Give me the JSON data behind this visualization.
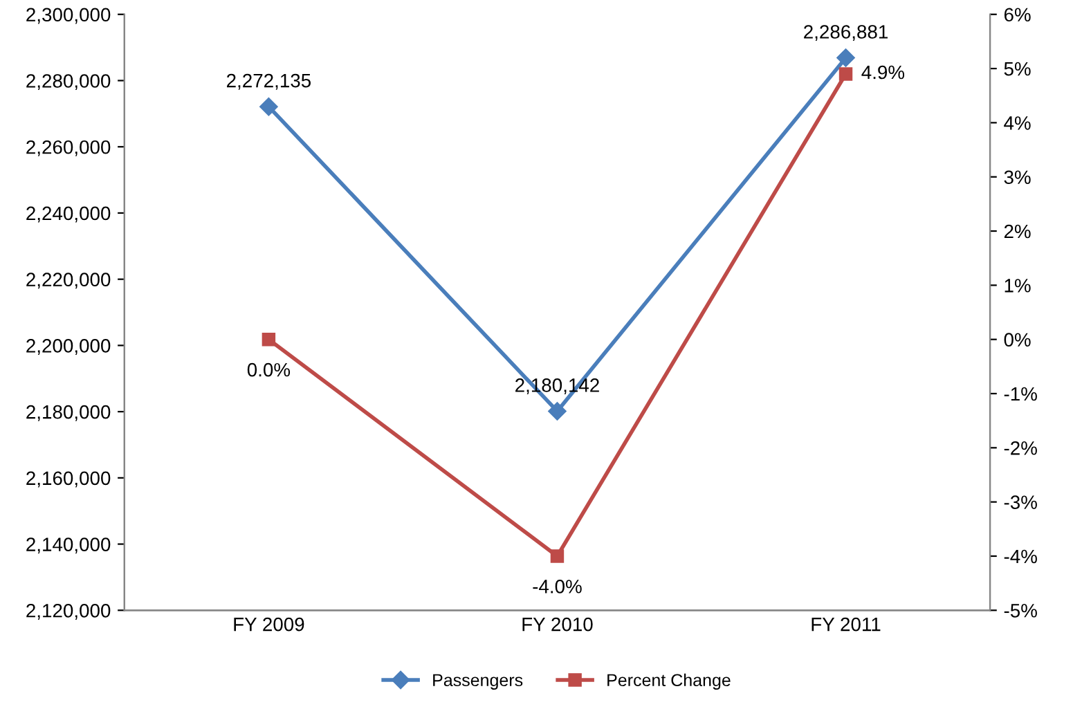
{
  "chart_data": {
    "type": "line",
    "categories": [
      "FY 2009",
      "FY 2010",
      "FY 2011"
    ],
    "series": [
      {
        "name": "Passengers",
        "color": "#4a7ebb",
        "marker": "diamond",
        "values": [
          2272135,
          2180142,
          2286881
        ],
        "value_labels": [
          "2,272,135",
          "2,180,142",
          "2,286,881"
        ]
      },
      {
        "name": "Percent Change",
        "color": "#be4b48",
        "marker": "square",
        "axis": "y2",
        "values": [
          0.0,
          -4.0,
          4.9
        ],
        "value_labels": [
          "0.0%",
          "-4.0%",
          "4.9%"
        ]
      }
    ],
    "ylim": [
      2120000,
      2300000
    ],
    "yticks": [
      {
        "value": 2120000,
        "label": "2,120,000"
      },
      {
        "value": 2140000,
        "label": "2,140,000"
      },
      {
        "value": 2160000,
        "label": "2,160,000"
      },
      {
        "value": 2180000,
        "label": "2,180,000"
      },
      {
        "value": 2200000,
        "label": "2,200,000"
      },
      {
        "value": 2220000,
        "label": "2,220,000"
      },
      {
        "value": 2240000,
        "label": "2,240,000"
      },
      {
        "value": 2260000,
        "label": "2,260,000"
      },
      {
        "value": 2280000,
        "label": "2,280,000"
      },
      {
        "value": 2300000,
        "label": "2,300,000"
      }
    ],
    "y2lim": [
      -5,
      6
    ],
    "y2ticks": [
      {
        "value": -5,
        "label": "-5%"
      },
      {
        "value": -4,
        "label": "-4%"
      },
      {
        "value": -3,
        "label": "-3%"
      },
      {
        "value": -2,
        "label": "-2%"
      },
      {
        "value": -1,
        "label": "-1%"
      },
      {
        "value": 0,
        "label": "0%"
      },
      {
        "value": 1,
        "label": "1%"
      },
      {
        "value": 2,
        "label": "2%"
      },
      {
        "value": 3,
        "label": "3%"
      },
      {
        "value": 4,
        "label": "4%"
      },
      {
        "value": 5,
        "label": "5%"
      },
      {
        "value": 6,
        "label": "6%"
      }
    ],
    "line_style": "solid",
    "grid": false,
    "legend": "bottom"
  }
}
